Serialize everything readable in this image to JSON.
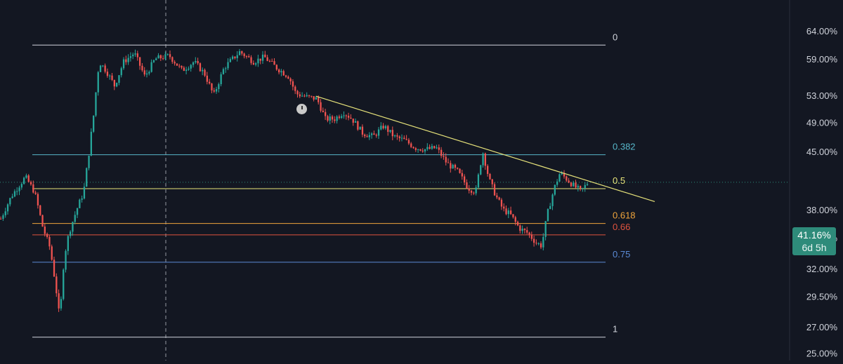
{
  "chart_data": {
    "type": "candlestick",
    "title": "",
    "xlabel": "",
    "ylabel": "",
    "y_scale": "log",
    "ylim": [
      24.2,
      70.0
    ],
    "y_ticks": [
      "64.00%",
      "59.00%",
      "53.00%",
      "49.00%",
      "45.00%",
      "38.00%",
      "35.00%",
      "32.00%",
      "29.50%",
      "27.00%",
      "25.00%"
    ],
    "y_tick_values": [
      64.0,
      59.0,
      53.0,
      49.0,
      45.0,
      38.0,
      35.0,
      32.0,
      29.5,
      27.0,
      25.0
    ],
    "grid": false,
    "last_price": {
      "label": "41.16%",
      "value": 41.16,
      "countdown": "6d 5h"
    },
    "fib_levels": [
      {
        "label": "0",
        "value": 61.4,
        "color": "#d1d4dc"
      },
      {
        "label": "0.382",
        "value": 44.6,
        "color": "#57b6c9"
      },
      {
        "label": "0.5",
        "value": 40.4,
        "color": "#e8e47a"
      },
      {
        "label": "0.618",
        "value": 36.5,
        "color": "#f0a53c"
      },
      {
        "label": "0.66",
        "value": 35.3,
        "color": "#e0533f"
      },
      {
        "label": "0.75",
        "value": 32.6,
        "color": "#5b8ad6"
      },
      {
        "label": "1",
        "value": 26.2,
        "color": "#d1d4dc"
      }
    ],
    "trendline": {
      "color": "#e6e27a",
      "start_value": 52.9,
      "end_value": 38.9
    },
    "colors": {
      "up": "#26a69a",
      "down": "#ef5350",
      "background": "#131722"
    },
    "series_path": [
      [
        0,
        37.0
      ],
      [
        15,
        39.5
      ],
      [
        35,
        41.8
      ],
      [
        48,
        40.0
      ],
      [
        60,
        36.0
      ],
      [
        70,
        34.0
      ],
      [
        78,
        30.5
      ],
      [
        84,
        27.5
      ],
      [
        90,
        33.0
      ],
      [
        97,
        35.5
      ],
      [
        108,
        38.0
      ],
      [
        118,
        40.0
      ],
      [
        125,
        44.5
      ],
      [
        132,
        50.0
      ],
      [
        140,
        58.5
      ],
      [
        150,
        57.0
      ],
      [
        162,
        54.5
      ],
      [
        175,
        58.5
      ],
      [
        190,
        60.0
      ],
      [
        205,
        56.0
      ],
      [
        220,
        59.0
      ],
      [
        240,
        59.5
      ],
      [
        258,
        57.0
      ],
      [
        275,
        58.5
      ],
      [
        290,
        56.5
      ],
      [
        303,
        53.0
      ],
      [
        318,
        57.5
      ],
      [
        340,
        60.2
      ],
      [
        360,
        58.5
      ],
      [
        375,
        59.3
      ],
      [
        392,
        57.5
      ],
      [
        410,
        56.0
      ],
      [
        420,
        53.3
      ],
      [
        435,
        52.8
      ],
      [
        450,
        52.5
      ],
      [
        462,
        49.5
      ],
      [
        475,
        49.5
      ],
      [
        488,
        50.5
      ],
      [
        500,
        49.5
      ],
      [
        515,
        47.5
      ],
      [
        530,
        47.0
      ],
      [
        545,
        48.5
      ],
      [
        560,
        47.0
      ],
      [
        575,
        46.5
      ],
      [
        590,
        45.5
      ],
      [
        605,
        45.3
      ],
      [
        620,
        45.5
      ],
      [
        635,
        43.5
      ],
      [
        650,
        42.5
      ],
      [
        665,
        40.5
      ],
      [
        676,
        40.0
      ],
      [
        686,
        45.0
      ],
      [
        695,
        41.5
      ],
      [
        705,
        39.5
      ],
      [
        715,
        38.0
      ],
      [
        725,
        37.5
      ],
      [
        738,
        36.0
      ],
      [
        750,
        35.5
      ],
      [
        762,
        34.5
      ],
      [
        770,
        34.2
      ],
      [
        778,
        37.5
      ],
      [
        788,
        40.5
      ],
      [
        796,
        42.3
      ],
      [
        806,
        41.5
      ],
      [
        816,
        40.7
      ],
      [
        826,
        40.1
      ],
      [
        836,
        41.16
      ]
    ]
  }
}
